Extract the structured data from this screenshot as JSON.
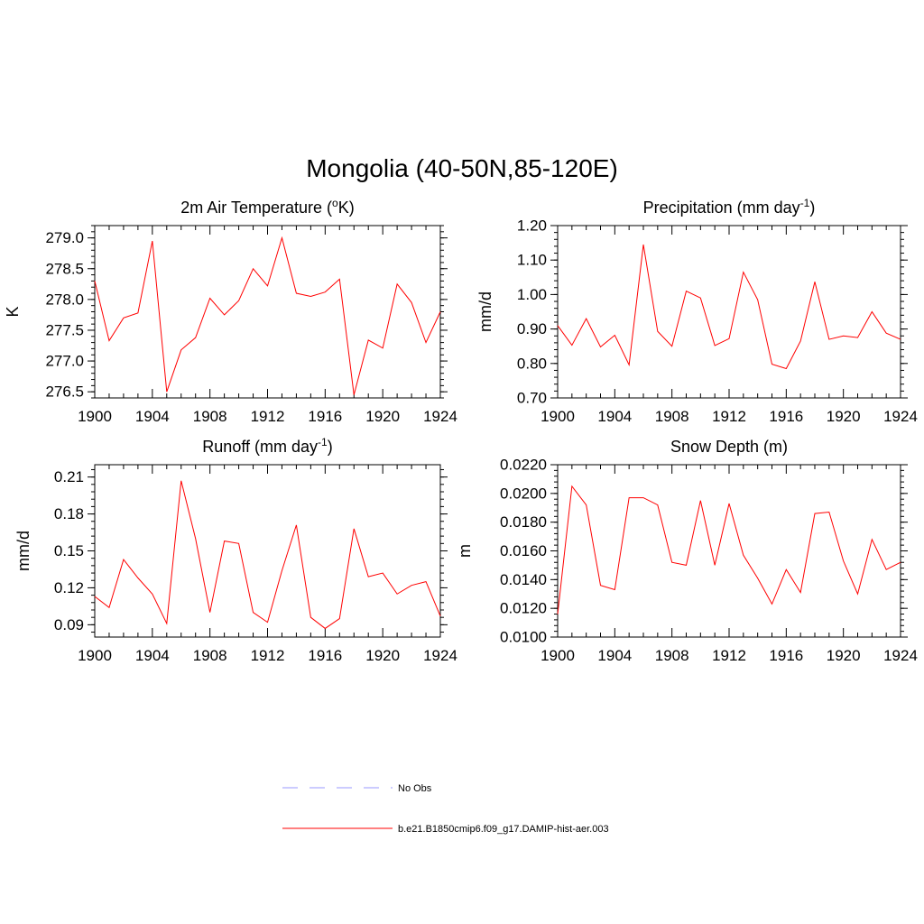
{
  "title": "Mongolia (40-50N,85-120E)",
  "colors": {
    "model": "#ff0000",
    "obs": "#9999ff"
  },
  "legend": [
    {
      "label": "No Obs",
      "style": "dashed",
      "color": "#9999ff"
    },
    {
      "label": "b.e21.B1850cmip6.f09_g17.DAMIP-hist-aer.003",
      "style": "solid",
      "color": "#ff0000"
    }
  ],
  "chart_data": [
    {
      "type": "line",
      "title_main": "2m Air Temperature (",
      "title_sup": "o",
      "title_rest": "K)",
      "ylabel": "K",
      "xlim": [
        1900,
        1924
      ],
      "ylim": [
        276.4,
        279.2
      ],
      "xticks": [
        "1900",
        "1904",
        "1908",
        "1912",
        "1916",
        "1920",
        "1924"
      ],
      "yticks": [
        "276.5",
        "277.0",
        "277.5",
        "278.0",
        "278.5",
        "279.0"
      ],
      "x": [
        1900,
        1901,
        1902,
        1903,
        1904,
        1905,
        1906,
        1907,
        1908,
        1909,
        1910,
        1911,
        1912,
        1913,
        1914,
        1915,
        1916,
        1917,
        1918,
        1919,
        1920,
        1921,
        1922,
        1923,
        1924
      ],
      "series": [
        {
          "values": [
            278.3,
            277.33,
            277.7,
            277.78,
            278.95,
            276.5,
            277.18,
            277.38,
            278.02,
            277.75,
            277.98,
            278.5,
            278.22,
            279.0,
            278.1,
            278.05,
            278.12,
            278.33,
            276.45,
            277.34,
            277.21,
            278.25,
            277.95,
            277.3,
            277.8
          ]
        }
      ]
    },
    {
      "type": "line",
      "title_main": "Precipitation (mm day",
      "title_sup": "-1",
      "title_rest": ")",
      "ylabel": "mm/d",
      "xlim": [
        1900,
        1924
      ],
      "ylim": [
        0.7,
        1.2
      ],
      "xticks": [
        "1900",
        "1904",
        "1908",
        "1912",
        "1916",
        "1920",
        "1924"
      ],
      "yticks": [
        "0.70",
        "0.80",
        "0.90",
        "1.00",
        "1.10",
        "1.20"
      ],
      "x": [
        1900,
        1901,
        1902,
        1903,
        1904,
        1905,
        1906,
        1907,
        1908,
        1909,
        1910,
        1911,
        1912,
        1913,
        1914,
        1915,
        1916,
        1917,
        1918,
        1919,
        1920,
        1921,
        1922,
        1923,
        1924
      ],
      "series": [
        {
          "values": [
            0.91,
            0.853,
            0.93,
            0.848,
            0.882,
            0.796,
            1.145,
            0.893,
            0.85,
            1.01,
            0.99,
            0.852,
            0.872,
            1.065,
            0.985,
            0.798,
            0.785,
            0.865,
            1.037,
            0.87,
            0.88,
            0.875,
            0.95,
            0.888,
            0.87
          ]
        }
      ]
    },
    {
      "type": "line",
      "title_main": "Runoff (mm day",
      "title_sup": "-1",
      "title_rest": ")",
      "ylabel": "mm/d",
      "xlim": [
        1900,
        1924
      ],
      "ylim": [
        0.08,
        0.22
      ],
      "xticks": [
        "1900",
        "1904",
        "1908",
        "1912",
        "1916",
        "1920",
        "1924"
      ],
      "yticks": [
        "0.09",
        "0.12",
        "0.15",
        "0.18",
        "0.21"
      ],
      "x": [
        1900,
        1901,
        1902,
        1903,
        1904,
        1905,
        1906,
        1907,
        1908,
        1909,
        1910,
        1911,
        1912,
        1913,
        1914,
        1915,
        1916,
        1917,
        1918,
        1919,
        1920,
        1921,
        1922,
        1923,
        1924
      ],
      "series": [
        {
          "values": [
            0.113,
            0.104,
            0.143,
            0.128,
            0.115,
            0.091,
            0.207,
            0.16,
            0.1,
            0.158,
            0.156,
            0.1,
            0.092,
            0.134,
            0.171,
            0.096,
            0.087,
            0.095,
            0.168,
            0.129,
            0.132,
            0.115,
            0.122,
            0.125,
            0.097
          ]
        }
      ]
    },
    {
      "type": "line",
      "title_main": "Snow Depth (m)",
      "title_sup": "",
      "title_rest": "",
      "ylabel": "m",
      "xlim": [
        1900,
        1924
      ],
      "ylim": [
        0.01,
        0.022
      ],
      "xticks": [
        "1900",
        "1904",
        "1908",
        "1912",
        "1916",
        "1920",
        "1924"
      ],
      "yticks": [
        "0.0100",
        "0.0120",
        "0.0140",
        "0.0160",
        "0.0180",
        "0.0200",
        "0.0220"
      ],
      "x": [
        1900,
        1901,
        1902,
        1903,
        1904,
        1905,
        1906,
        1907,
        1908,
        1909,
        1910,
        1911,
        1912,
        1913,
        1914,
        1915,
        1916,
        1917,
        1918,
        1919,
        1920,
        1921,
        1922,
        1923,
        1924
      ],
      "series": [
        {
          "values": [
            0.0116,
            0.0205,
            0.0192,
            0.0136,
            0.0133,
            0.0197,
            0.0197,
            0.0192,
            0.0152,
            0.015,
            0.0195,
            0.015,
            0.0193,
            0.0157,
            0.0141,
            0.0123,
            0.0147,
            0.0131,
            0.0186,
            0.0187,
            0.0153,
            0.013,
            0.0168,
            0.0147,
            0.0152
          ]
        }
      ]
    }
  ]
}
